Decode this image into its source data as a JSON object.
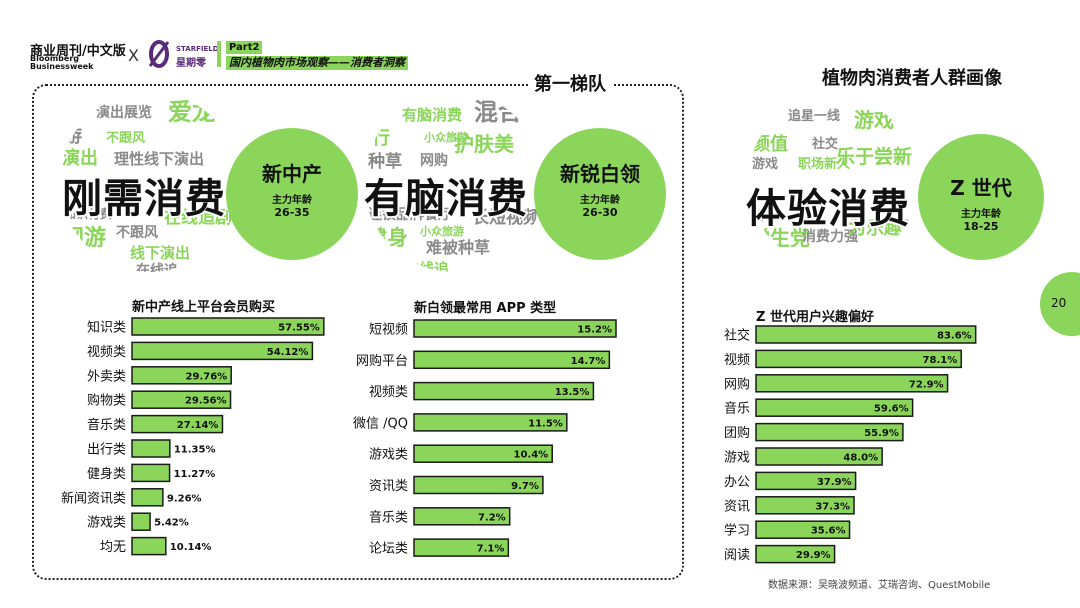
{
  "header": {
    "logo_cn": "商业周刊/中文版",
    "logo_en_1": "Bloomberg",
    "logo_en_2": "Businessweek",
    "times": "X",
    "partner_1": "STARFIELD",
    "partner_2": "星期零",
    "part_label": "Part2",
    "part_title": "国内植物肉市场观察——消费者洞察"
  },
  "section_left_title": "第一梯队",
  "section_right_title": "植物肉消费者人群画像",
  "page_number": "20",
  "source": "数据来源：吴晓波频道、艾瑞咨询、QuestMobile",
  "colors": {
    "accent": "#8bd65a",
    "bar_fill": "#8bd65a",
    "text": "#111111"
  },
  "personas": [
    {
      "big_word": "刚需消费",
      "group": "新中产",
      "age_label": "主力年龄",
      "age": "26-35",
      "cloud_words": [
        "演出展览",
        "爱龙",
        "游",
        "不跟风",
        "演出",
        "理性线下演出",
        "知识付费",
        "在线追剧",
        "网游",
        "不跟风",
        "线下演出",
        "在线追"
      ]
    },
    {
      "big_word": "有脑消费",
      "group": "新锐白领",
      "age_label": "主力年龄",
      "age": "26-30",
      "cloud_words": [
        "有脑消费",
        "混合",
        "小众旅游",
        "行",
        "护肤美",
        "种草",
        "网购",
        "连锁品牌餐厅",
        "长短视频",
        "健身",
        "小众旅游",
        "难被种草",
        "在线追"
      ]
    },
    {
      "big_word": "体验消费",
      "group": "Z 世代",
      "age_label": "主力年龄",
      "age": "18-25",
      "cloud_words": [
        "追星一线",
        "游戏",
        "游戏",
        "颜值",
        "社交",
        "职场新人",
        "乐于尝新",
        "管理",
        "学生党",
        "消费力强",
        "为乐趣买"
      ]
    }
  ],
  "chart_data": [
    {
      "type": "bar",
      "orientation": "horizontal",
      "title": "新中产线上平台会员购买",
      "categories": [
        "知识类",
        "视频类",
        "外卖类",
        "购物类",
        "音乐类",
        "出行类",
        "健身类",
        "新闻资讯类",
        "游戏类",
        "均无"
      ],
      "values": [
        57.55,
        54.12,
        29.76,
        29.56,
        27.14,
        11.35,
        11.27,
        9.26,
        5.42,
        10.14
      ],
      "labels": [
        "57.55%",
        "54.12%",
        "29.76%",
        "29.56%",
        "27.14%",
        "11.35%",
        "11.27%",
        "9.26%",
        "5.42%",
        "10.14%"
      ],
      "xlim": [
        0,
        60
      ]
    },
    {
      "type": "bar",
      "orientation": "horizontal",
      "title": "新白领最常用 APP 类型",
      "categories": [
        "短视频",
        "网购平台",
        "视频类",
        "微信 /QQ",
        "游戏类",
        "资讯类",
        "音乐类",
        "论坛类"
      ],
      "values": [
        15.2,
        14.7,
        13.5,
        11.5,
        10.4,
        9.7,
        7.2,
        7.1
      ],
      "labels": [
        "15.2%",
        "14.7%",
        "13.5%",
        "11.5%",
        "10.4%",
        "9.7%",
        "7.2%",
        "7.1%"
      ],
      "xlim": [
        0,
        15.2
      ]
    },
    {
      "type": "bar",
      "orientation": "horizontal",
      "title": "Z 世代用户兴趣偏好",
      "categories": [
        "社交",
        "视频",
        "网购",
        "音乐",
        "团购",
        "游戏",
        "办公",
        "资讯",
        "学习",
        "阅读"
      ],
      "values": [
        83.6,
        78.1,
        72.9,
        59.6,
        55.9,
        48.0,
        37.9,
        37.3,
        35.6,
        29.9
      ],
      "labels": [
        "83.6%",
        "78.1%",
        "72.9%",
        "59.6%",
        "55.9%",
        "48.0%",
        "37.9%",
        "37.3%",
        "35.6%",
        "29.9%"
      ],
      "xlim": [
        0,
        86
      ]
    }
  ]
}
